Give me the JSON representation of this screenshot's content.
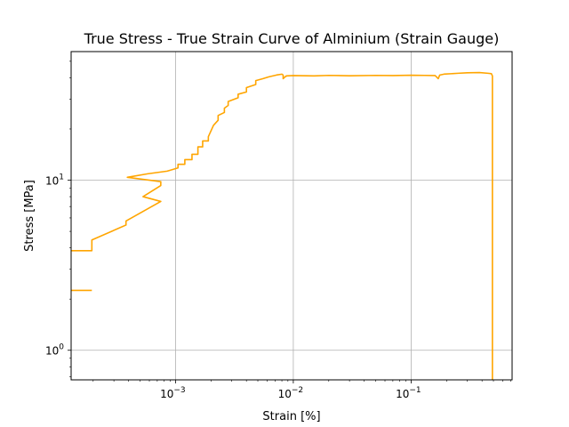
{
  "chart_data": {
    "type": "line",
    "title": "True Stress - True Strain Curve of Alminium (Strain Gauge)",
    "xlabel": "Strain [%]",
    "ylabel": "Stress [MPa]",
    "xscale": "log",
    "yscale": "log",
    "xlim": [
      0.00013,
      0.72
    ],
    "ylim": [
      0.67,
      57
    ],
    "grid": true,
    "x_ticks": [
      {
        "base": "10",
        "exp": "−3",
        "value": 0.001
      },
      {
        "base": "10",
        "exp": "−2",
        "value": 0.01
      },
      {
        "base": "10",
        "exp": "−1",
        "value": 0.1
      }
    ],
    "y_ticks": [
      {
        "base": "10",
        "exp": "0",
        "value": 1
      },
      {
        "base": "10",
        "exp": "1",
        "value": 10
      }
    ],
    "series": [
      {
        "color": "#FFA500",
        "segments": [
          {
            "x": [
              0.00013,
              0.000195
            ],
            "y": [
              2.25,
              2.25
            ]
          },
          {
            "x": [
              0.00013,
              0.000195,
              0.000195,
              0.00038,
              0.00038,
              0.00075,
              0.00053,
              0.00075,
              0.00075,
              0.00039,
              0.00058,
              0.00085,
              0.00105,
              0.00105,
              0.0012,
              0.0012,
              0.00138,
              0.00138,
              0.00155,
              0.00155,
              0.0017,
              0.0017,
              0.0019,
              0.0019,
              0.0021,
              0.0023,
              0.0023,
              0.0026,
              0.0026,
              0.0028,
              0.0028,
              0.0034,
              0.0034,
              0.004,
              0.004,
              0.0048,
              0.0048,
              0.0055,
              0.0062,
              0.0072,
              0.008,
              0.0082,
              0.0082,
              0.0085,
              0.0087,
              0.0087,
              0.01,
              0.015,
              0.02,
              0.03,
              0.05,
              0.07,
              0.1,
              0.13,
              0.16,
              0.17,
              0.175,
              0.19,
              0.25,
              0.3,
              0.38,
              0.45,
              0.48,
              0.49,
              0.49,
              0.49
            ],
            "y": [
              3.85,
              3.85,
              4.45,
              5.45,
              5.75,
              7.5,
              8.0,
              9.3,
              9.8,
              10.4,
              10.9,
              11.3,
              11.8,
              12.4,
              12.4,
              13.2,
              13.2,
              14.2,
              14.2,
              15.7,
              15.7,
              17.0,
              17.0,
              18.0,
              21.0,
              22.5,
              24.0,
              25.0,
              26.5,
              27.5,
              29.0,
              30.5,
              32.0,
              33.0,
              35.0,
              36.5,
              38.5,
              39.5,
              40.5,
              41.5,
              42.0,
              41.5,
              39.5,
              40.5,
              40.8,
              41.0,
              41.2,
              41.0,
              41.3,
              41.1,
              41.3,
              41.2,
              41.4,
              41.3,
              41.2,
              39.5,
              41.5,
              42.0,
              42.5,
              42.8,
              42.9,
              42.5,
              42.3,
              41.0,
              40.0,
              0.67
            ]
          }
        ]
      }
    ]
  }
}
